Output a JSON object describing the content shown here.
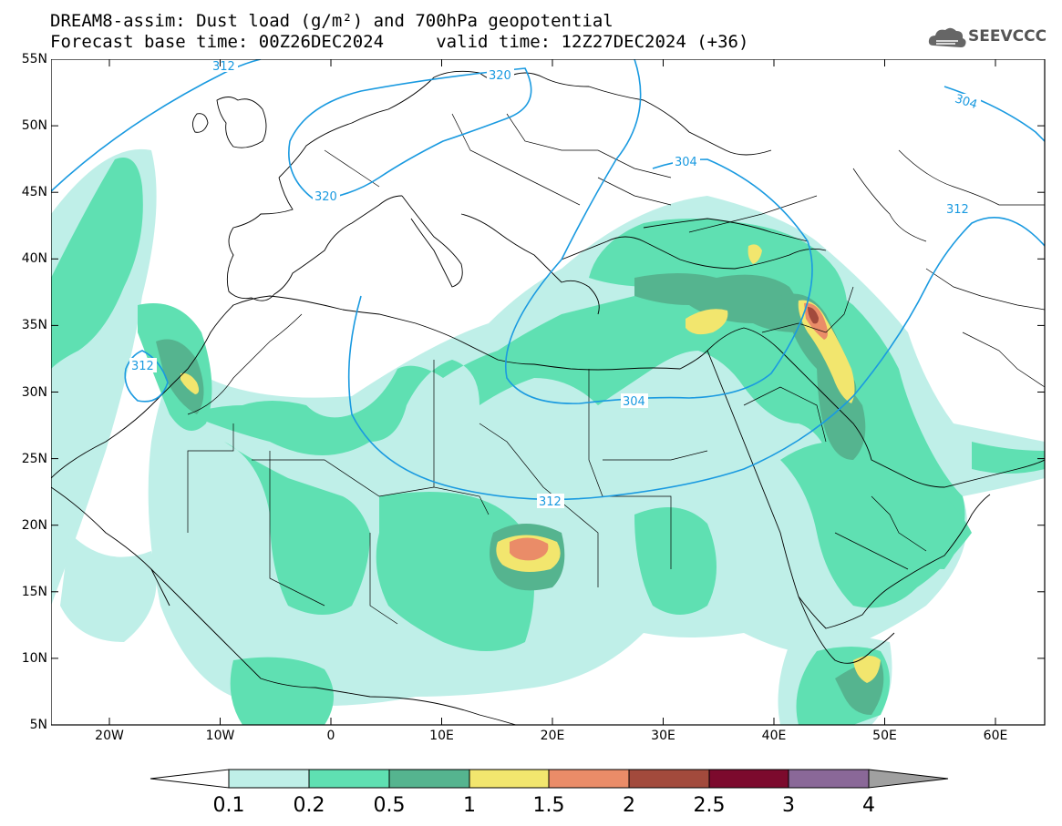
{
  "header": {
    "title_line1": "DREAM8-assim: Dust load (g/m²) and 700hPa geopotential",
    "title_line2": "Forecast base time: 00Z26DEC2024     valid time: 12Z27DEC2024 (+36)",
    "logo_text": "SEEVCCC"
  },
  "map": {
    "lat_labels": [
      "55N",
      "50N",
      "45N",
      "40N",
      "35N",
      "30N",
      "25N",
      "20N",
      "15N",
      "10N",
      "5N"
    ],
    "lon_labels": [
      "20W",
      "10W",
      "0",
      "10E",
      "20E",
      "30E",
      "40E",
      "50E",
      "60E"
    ],
    "contour_labels": [
      "312",
      "320",
      "320",
      "304",
      "304",
      "312",
      "304",
      "312"
    ],
    "colors": {
      "level_0_1": "#bfefe8",
      "level_0_2": "#5fe0b2",
      "level_0_5": "#55b48f",
      "level_1": "#f2e66e",
      "level_1_5": "#ea8c68",
      "level_2": "#a24a3c",
      "level_2_5": "#7c0a2d",
      "level_3": "#8a6898",
      "level_4": "#a0a0a0",
      "contour": "#1a9ae0"
    }
  },
  "colorbar": {
    "labels": [
      "0.1",
      "0.2",
      "0.5",
      "1",
      "1.5",
      "2",
      "2.5",
      "3",
      "4"
    ]
  }
}
